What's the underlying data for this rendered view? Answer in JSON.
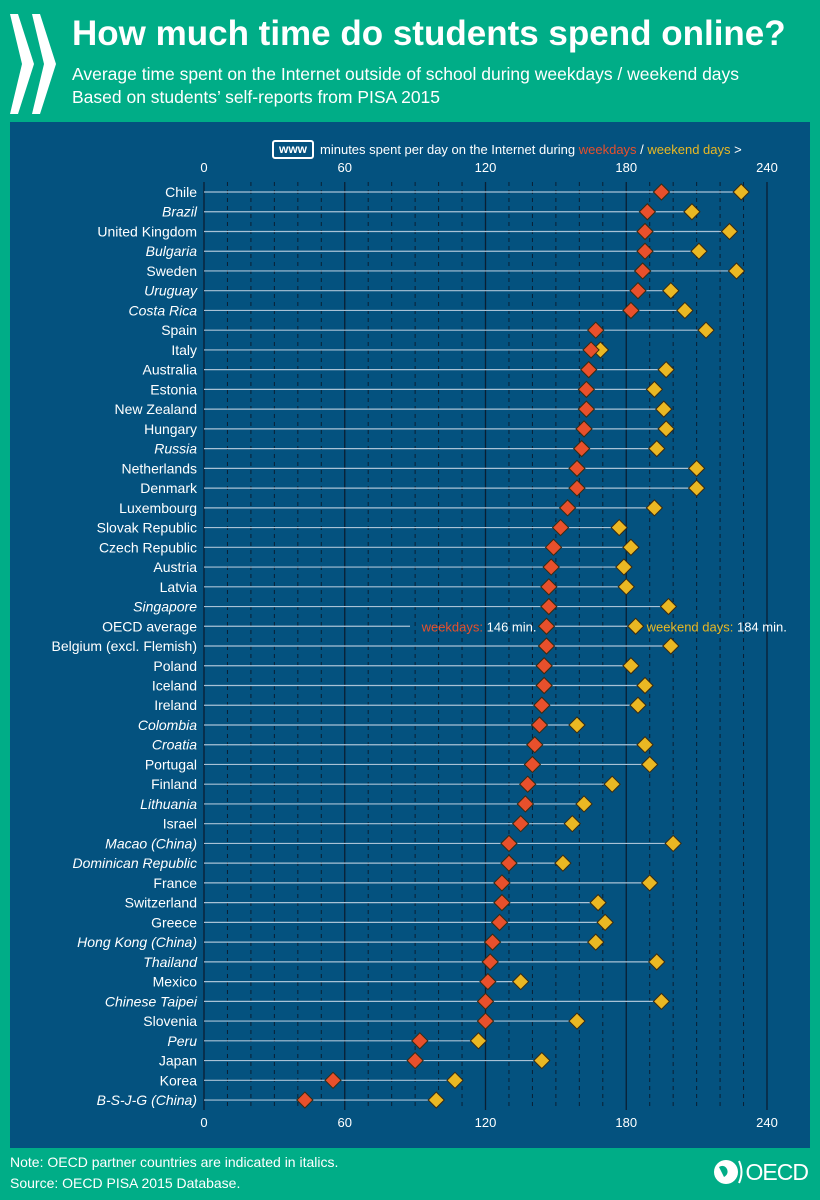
{
  "header": {
    "title": "How much time do students spend online?",
    "subtitle_1": "Average time spent on the Internet outside of school during weekdays / weekend days",
    "subtitle_2": "Based on students’ self-reports from PISA 2015"
  },
  "legend": {
    "badge": "www",
    "text": "minutes spent per day on the Internet during",
    "weekdays": "weekdays",
    "sep": " / ",
    "weekend": "weekend days",
    "arrow": " >"
  },
  "footer": {
    "note": "Note: OECD partner countries are indicated in italics.",
    "source": "Source: OECD PISA 2015 Database.",
    "logo": "OECD"
  },
  "colors": {
    "background": "#00ad87",
    "panel": "#04527f",
    "weekdays": "#e8502c",
    "weekend": "#eab823"
  },
  "chart_data": {
    "type": "dot",
    "xlim": [
      0,
      240
    ],
    "xticks": [
      0,
      60,
      120,
      180,
      240
    ],
    "grid": true,
    "annotation": {
      "weekdays_label": "weekdays:",
      "weekdays_value": "146 min.",
      "weekend_label": "weekend days:",
      "weekend_value": "184 min."
    },
    "series": [
      {
        "name": "weekdays"
      },
      {
        "name": "weekend days"
      }
    ],
    "rows": [
      {
        "country": "Chile",
        "italic": false,
        "weekdays": 195,
        "weekend": 229
      },
      {
        "country": "Brazil",
        "italic": true,
        "weekdays": 189,
        "weekend": 208
      },
      {
        "country": "United Kingdom",
        "italic": false,
        "weekdays": 188,
        "weekend": 224
      },
      {
        "country": "Bulgaria",
        "italic": true,
        "weekdays": 188,
        "weekend": 211
      },
      {
        "country": "Sweden",
        "italic": false,
        "weekdays": 187,
        "weekend": 227
      },
      {
        "country": "Uruguay",
        "italic": true,
        "weekdays": 185,
        "weekend": 199
      },
      {
        "country": "Costa Rica",
        "italic": true,
        "weekdays": 182,
        "weekend": 205
      },
      {
        "country": "Spain",
        "italic": false,
        "weekdays": 167,
        "weekend": 214
      },
      {
        "country": "Italy",
        "italic": false,
        "weekdays": 165,
        "weekend": 169
      },
      {
        "country": "Australia",
        "italic": false,
        "weekdays": 164,
        "weekend": 197
      },
      {
        "country": "Estonia",
        "italic": false,
        "weekdays": 163,
        "weekend": 192
      },
      {
        "country": "New Zealand",
        "italic": false,
        "weekdays": 163,
        "weekend": 196
      },
      {
        "country": "Hungary",
        "italic": false,
        "weekdays": 162,
        "weekend": 197
      },
      {
        "country": "Russia",
        "italic": true,
        "weekdays": 161,
        "weekend": 193
      },
      {
        "country": "Netherlands",
        "italic": false,
        "weekdays": 159,
        "weekend": 210
      },
      {
        "country": "Denmark",
        "italic": false,
        "weekdays": 159,
        "weekend": 210
      },
      {
        "country": "Luxembourg",
        "italic": false,
        "weekdays": 155,
        "weekend": 192
      },
      {
        "country": "Slovak Republic",
        "italic": false,
        "weekdays": 152,
        "weekend": 177
      },
      {
        "country": "Czech Republic",
        "italic": false,
        "weekdays": 149,
        "weekend": 182
      },
      {
        "country": "Austria",
        "italic": false,
        "weekdays": 148,
        "weekend": 179
      },
      {
        "country": "Latvia",
        "italic": false,
        "weekdays": 147,
        "weekend": 180
      },
      {
        "country": "Singapore",
        "italic": true,
        "weekdays": 147,
        "weekend": 198
      },
      {
        "country": "OECD average",
        "italic": false,
        "weekdays": 146,
        "weekend": 184,
        "average": true
      },
      {
        "country": "Belgium (excl. Flemish)",
        "italic": false,
        "weekdays": 146,
        "weekend": 199
      },
      {
        "country": "Poland",
        "italic": false,
        "weekdays": 145,
        "weekend": 182
      },
      {
        "country": "Iceland",
        "italic": false,
        "weekdays": 145,
        "weekend": 188
      },
      {
        "country": "Ireland",
        "italic": false,
        "weekdays": 144,
        "weekend": 185
      },
      {
        "country": "Colombia",
        "italic": true,
        "weekdays": 143,
        "weekend": 159
      },
      {
        "country": "Croatia",
        "italic": true,
        "weekdays": 141,
        "weekend": 188
      },
      {
        "country": "Portugal",
        "italic": false,
        "weekdays": 140,
        "weekend": 190
      },
      {
        "country": "Finland",
        "italic": false,
        "weekdays": 138,
        "weekend": 174
      },
      {
        "country": "Lithuania",
        "italic": true,
        "weekdays": 137,
        "weekend": 162
      },
      {
        "country": "Israel",
        "italic": false,
        "weekdays": 135,
        "weekend": 157
      },
      {
        "country": "Macao (China)",
        "italic": true,
        "weekdays": 130,
        "weekend": 200
      },
      {
        "country": "Dominican Republic",
        "italic": true,
        "weekdays": 130,
        "weekend": 153
      },
      {
        "country": "France",
        "italic": false,
        "weekdays": 127,
        "weekend": 190
      },
      {
        "country": "Switzerland",
        "italic": false,
        "weekdays": 127,
        "weekend": 168
      },
      {
        "country": "Greece",
        "italic": false,
        "weekdays": 126,
        "weekend": 171
      },
      {
        "country": "Hong Kong (China)",
        "italic": true,
        "weekdays": 123,
        "weekend": 167
      },
      {
        "country": "Thailand",
        "italic": true,
        "weekdays": 122,
        "weekend": 193
      },
      {
        "country": "Mexico",
        "italic": false,
        "weekdays": 121,
        "weekend": 135
      },
      {
        "country": "Chinese Taipei",
        "italic": true,
        "weekdays": 120,
        "weekend": 195
      },
      {
        "country": "Slovenia",
        "italic": false,
        "weekdays": 120,
        "weekend": 159
      },
      {
        "country": "Peru",
        "italic": true,
        "weekdays": 92,
        "weekend": 117
      },
      {
        "country": "Japan",
        "italic": false,
        "weekdays": 90,
        "weekend": 144
      },
      {
        "country": "Korea",
        "italic": false,
        "weekdays": 55,
        "weekend": 107
      },
      {
        "country": "B-S-J-G (China)",
        "italic": true,
        "weekdays": 43,
        "weekend": 99
      }
    ]
  }
}
